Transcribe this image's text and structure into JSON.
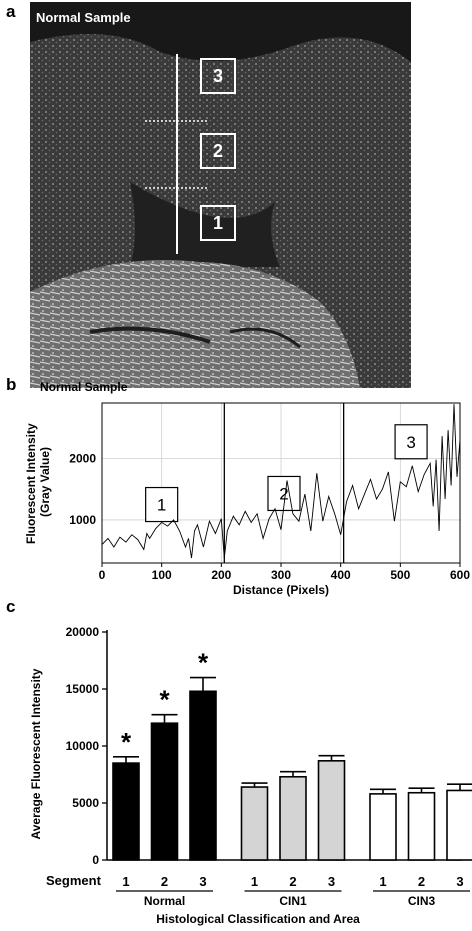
{
  "panels": {
    "a": "a",
    "b": "b",
    "c": "c"
  },
  "micrograph": {
    "title": "Normal Sample",
    "segments": [
      "1",
      "2",
      "3"
    ]
  },
  "chart_data": [
    {
      "type": "line",
      "title": "Normal Sample",
      "xlabel": "Distance (Pixels)",
      "ylabel": "Fluorescent Intensity (Gray Value)",
      "xlim": [
        0,
        600
      ],
      "ylim": [
        300,
        2900
      ],
      "xticks": [
        0,
        100,
        200,
        300,
        400,
        500,
        600
      ],
      "yticks": [
        1000,
        2000
      ],
      "grid": true,
      "region_boundaries": [
        205,
        405
      ],
      "region_labels": [
        "1",
        "2",
        "3"
      ],
      "series": [
        {
          "x": [
            0,
            10,
            20,
            30,
            40,
            50,
            60,
            70,
            75,
            80,
            90,
            100,
            110,
            120,
            130,
            140,
            145,
            150,
            155,
            160,
            170,
            180,
            190,
            200,
            205,
            210,
            220,
            230,
            240,
            250,
            260,
            270,
            280,
            290,
            300,
            310,
            320,
            330,
            340,
            350,
            360,
            370,
            380,
            390,
            400,
            410,
            420,
            430,
            440,
            450,
            460,
            470,
            480,
            490,
            500,
            510,
            520,
            530,
            540,
            550,
            555,
            560,
            565,
            570,
            575,
            580,
            585,
            590,
            595,
            600
          ],
          "y": [
            600,
            700,
            560,
            720,
            640,
            760,
            680,
            520,
            780,
            700,
            860,
            960,
            900,
            1000,
            820,
            560,
            700,
            380,
            820,
            920,
            560,
            980,
            780,
            1020,
            380,
            820,
            1060,
            920,
            1140,
            960,
            1100,
            700,
            1020,
            1180,
            840,
            1640,
            1100,
            980,
            1420,
            820,
            1760,
            980,
            1380,
            1100,
            760,
            1300,
            1560,
            1180,
            1420,
            1660,
            1340,
            1500,
            1780,
            980,
            1620,
            1540,
            1880,
            1460,
            1740,
            1920,
            1220,
            1980,
            820,
            2360,
            1340,
            2460,
            1560,
            2880,
            1700,
            2300
          ]
        }
      ]
    },
    {
      "type": "bar",
      "ylabel": "Average Fluorescent Intensity",
      "xlabel": "Histological Classification and Area",
      "ylim": [
        0,
        20000
      ],
      "yticks": [
        0,
        5000,
        10000,
        15000,
        20000
      ],
      "segment_label": "Segment",
      "categories": [
        "1",
        "2",
        "3",
        "1",
        "2",
        "3",
        "1",
        "2",
        "3"
      ],
      "groups": [
        {
          "name": "Normal",
          "color": "#000000",
          "values": [
            8500,
            12000,
            14800
          ],
          "errors": [
            550,
            750,
            1200
          ],
          "significant": [
            "*",
            "*",
            "*"
          ]
        },
        {
          "name": "CIN1",
          "color": "#d4d4d4",
          "values": [
            6400,
            7300,
            8700
          ],
          "errors": [
            350,
            450,
            450
          ],
          "significant": [
            "",
            "",
            ""
          ]
        },
        {
          "name": "CIN3",
          "color": "#ffffff",
          "values": [
            5800,
            5900,
            6100
          ],
          "errors": [
            400,
            400,
            550
          ],
          "significant": [
            "",
            "",
            ""
          ]
        }
      ]
    }
  ]
}
